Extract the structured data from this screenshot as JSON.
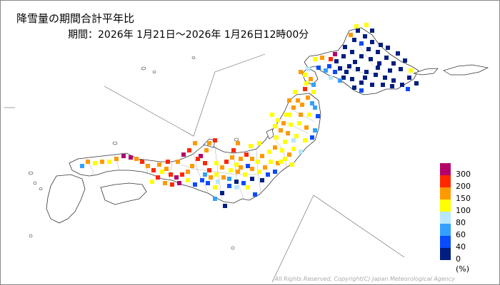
{
  "title": "降雪量の期間合計平年比",
  "period": "期間：2026年 1月21日～2026年 1月26日12時00分",
  "legend": {
    "unit": "(%)",
    "items": [
      {
        "label": "300",
        "color": "#b4006a"
      },
      {
        "label": "200",
        "color": "#ff2800"
      },
      {
        "label": "150",
        "color": "#ff9900"
      },
      {
        "label": "100",
        "color": "#ffff00"
      },
      {
        "label": "80",
        "color": "#b8e6ff"
      },
      {
        "label": "60",
        "color": "#33a0ff"
      },
      {
        "label": "40",
        "color": "#0a4bff"
      },
      {
        "label": "0",
        "color": "#001e80"
      }
    ]
  },
  "copyright": "All Rights Reserved, Copyright(C) Japan Meteorological Agency"
}
